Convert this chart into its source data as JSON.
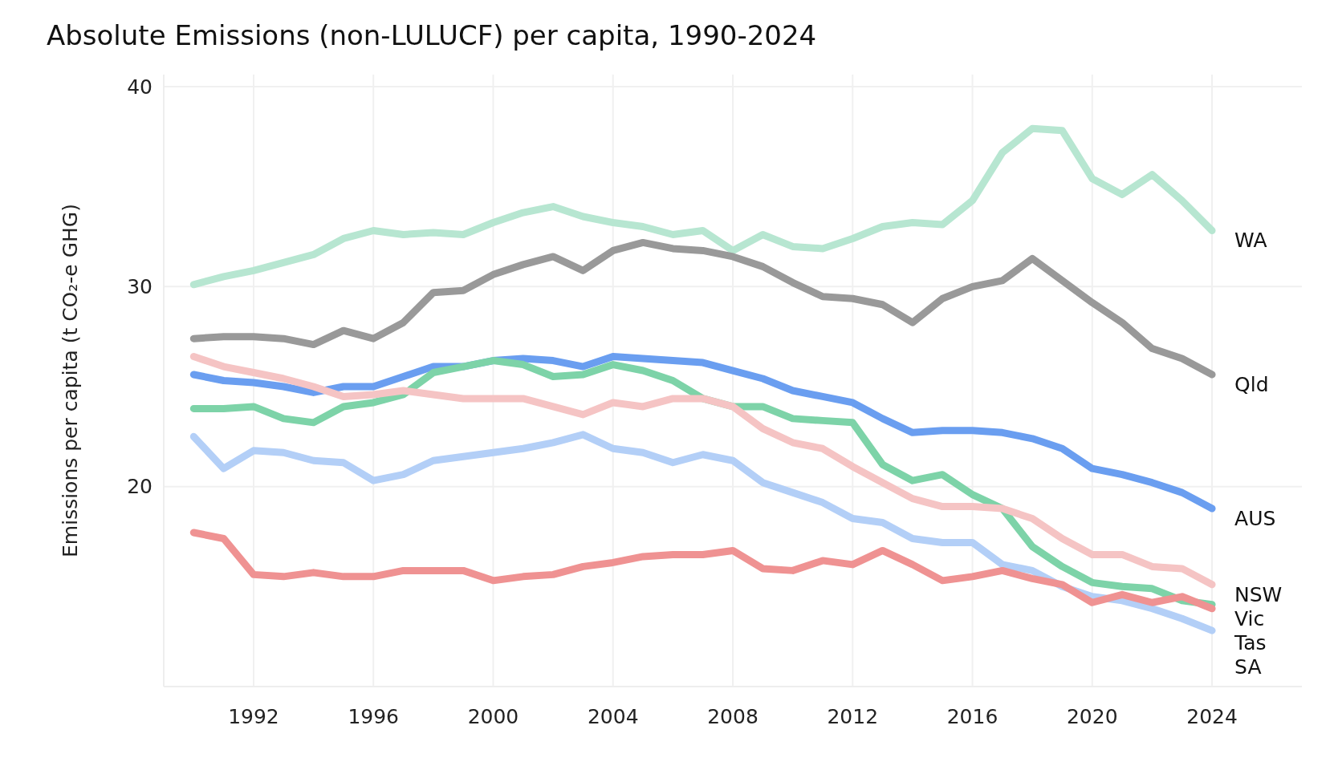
{
  "chart_data": {
    "type": "line",
    "title": "Absolute Emissions (non-LULUCF) per capita, 1990-2024",
    "ylabel": "Emissions per capita (t CO₂-e  GHG)",
    "x": [
      1990,
      1991,
      1992,
      1993,
      1994,
      1995,
      1996,
      1997,
      1998,
      1999,
      2000,
      2001,
      2002,
      2003,
      2004,
      2005,
      2006,
      2007,
      2008,
      2009,
      2010,
      2011,
      2012,
      2013,
      2014,
      2015,
      2016,
      2017,
      2018,
      2019,
      2020,
      2021,
      2022,
      2023,
      2024
    ],
    "xlim": [
      1989,
      2027
    ],
    "xticks": [
      1992,
      1996,
      2000,
      2004,
      2008,
      2012,
      2016,
      2020,
      2024
    ],
    "ylim": [
      10,
      40.6
    ],
    "yticks": [
      20,
      30,
      40
    ],
    "grid": true,
    "line_style": "solid",
    "marker": "none",
    "series": [
      {
        "name": "WA",
        "color": "#b7e6d1",
        "values": [
          30.1,
          30.5,
          30.8,
          31.2,
          31.6,
          32.4,
          32.8,
          32.6,
          32.7,
          32.6,
          33.2,
          33.7,
          34.0,
          33.5,
          33.2,
          33.0,
          32.6,
          32.8,
          31.8,
          32.6,
          32.0,
          31.9,
          32.4,
          33.0,
          33.2,
          33.1,
          34.3,
          36.7,
          37.9,
          37.8,
          35.4,
          34.6,
          35.6,
          34.3,
          32.8
        ]
      },
      {
        "name": "Qld",
        "color": "#999999",
        "values": [
          27.4,
          27.5,
          27.5,
          27.4,
          27.1,
          27.8,
          27.4,
          28.2,
          29.7,
          29.8,
          30.6,
          31.1,
          31.5,
          30.8,
          31.8,
          32.2,
          31.9,
          31.8,
          31.5,
          31.0,
          30.2,
          29.5,
          29.4,
          29.1,
          28.2,
          29.4,
          30.0,
          30.3,
          31.4,
          30.3,
          29.2,
          28.2,
          26.9,
          26.4,
          25.6
        ]
      },
      {
        "name": "AUS",
        "color": "#6a9ef0",
        "values": [
          25.6,
          25.3,
          25.2,
          25.0,
          24.7,
          25.0,
          25.0,
          25.5,
          26.0,
          26.0,
          26.3,
          26.4,
          26.3,
          26.0,
          26.5,
          26.4,
          26.3,
          26.2,
          25.8,
          25.4,
          24.8,
          24.5,
          24.2,
          23.4,
          22.7,
          22.8,
          22.8,
          22.7,
          22.4,
          21.9,
          20.9,
          20.6,
          20.2,
          19.7,
          18.9
        ]
      },
      {
        "name": "Vic",
        "color": "#7dd3a8",
        "values": [
          23.9,
          23.9,
          24.0,
          23.4,
          23.2,
          24.0,
          24.2,
          24.6,
          25.7,
          26.0,
          26.3,
          26.1,
          25.5,
          25.6,
          26.1,
          25.8,
          25.3,
          24.4,
          24.0,
          24.0,
          23.4,
          23.3,
          23.2,
          21.1,
          20.3,
          20.6,
          19.6,
          18.9,
          17.0,
          16.0,
          15.2,
          15.0,
          14.9,
          14.3,
          14.1
        ]
      },
      {
        "name": "NSW",
        "color": "#f5c4c4",
        "values": [
          26.5,
          26.0,
          25.7,
          25.4,
          25.0,
          24.5,
          24.6,
          24.8,
          24.6,
          24.4,
          24.4,
          24.4,
          24.0,
          23.6,
          24.2,
          24.0,
          24.4,
          24.4,
          24.0,
          22.9,
          22.2,
          21.9,
          21.0,
          20.2,
          19.4,
          19.0,
          19.0,
          18.9,
          18.4,
          17.4,
          16.6,
          16.6,
          16.0,
          15.9,
          15.1
        ]
      },
      {
        "name": "SA",
        "color": "#b3cff7",
        "values": [
          22.5,
          20.9,
          21.8,
          21.7,
          21.3,
          21.2,
          20.3,
          20.6,
          21.3,
          21.5,
          21.7,
          21.9,
          22.2,
          22.6,
          21.9,
          21.7,
          21.2,
          21.6,
          21.3,
          20.2,
          19.7,
          19.2,
          18.4,
          18.2,
          17.4,
          17.2,
          17.2,
          16.1,
          15.8,
          15.0,
          14.5,
          14.3,
          13.9,
          13.4,
          12.8
        ]
      },
      {
        "name": "Tas",
        "color": "#ef9292",
        "values": [
          17.7,
          17.4,
          15.6,
          15.5,
          15.7,
          15.5,
          15.5,
          15.8,
          15.8,
          15.8,
          15.3,
          15.5,
          15.6,
          16.0,
          16.2,
          16.5,
          16.6,
          16.6,
          16.8,
          15.9,
          15.8,
          16.3,
          16.1,
          16.8,
          16.1,
          15.3,
          15.5,
          15.8,
          15.4,
          15.1,
          14.2,
          14.6,
          14.2,
          14.5,
          13.9
        ]
      }
    ]
  }
}
